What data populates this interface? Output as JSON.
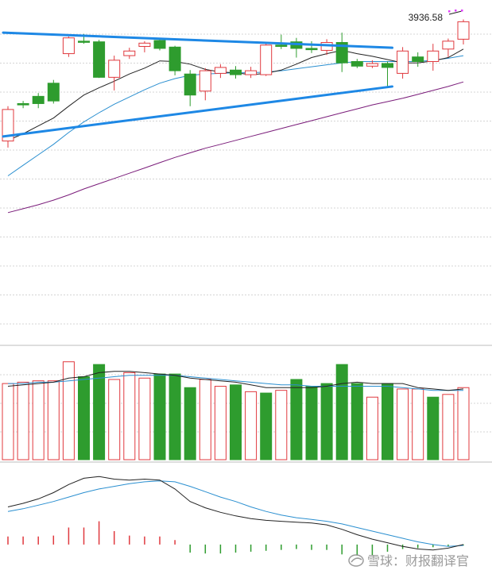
{
  "colors": {
    "up": "#e0393e",
    "down": "#2e9c2e",
    "ma_short": "#222222",
    "ma_mid": "#2a8fd0",
    "ma_long": "#7a1c7a",
    "trendline": "#1e88e5",
    "grid": "#d4d4d4",
    "separator": "#bdbdbd",
    "marker": "#e040fb"
  },
  "chart_data": [
    {
      "type": "candlestick",
      "title": "",
      "annotations": [
        "3936.58"
      ],
      "ylim": [
        3450,
        3960
      ],
      "grid": "horizontal dashed",
      "candles": [
        {
          "o": 3755,
          "c": 3803,
          "h": 3808,
          "l": 3745
        },
        {
          "o": 3812,
          "c": 3810,
          "h": 3816,
          "l": 3805
        },
        {
          "o": 3823,
          "c": 3812,
          "h": 3828,
          "l": 3805
        },
        {
          "o": 3843,
          "c": 3816,
          "h": 3848,
          "l": 3812
        },
        {
          "o": 3888,
          "c": 3912,
          "h": 3914,
          "l": 3883
        },
        {
          "o": 3907,
          "c": 3906,
          "h": 3918,
          "l": 3903
        },
        {
          "o": 3906,
          "c": 3852,
          "h": 3909,
          "l": 3851
        },
        {
          "o": 3852,
          "c": 3878,
          "h": 3885,
          "l": 3832
        },
        {
          "o": 3885,
          "c": 3892,
          "h": 3897,
          "l": 3880
        },
        {
          "o": 3899,
          "c": 3904,
          "h": 3907,
          "l": 3890
        },
        {
          "o": 3908,
          "c": 3896,
          "h": 3910,
          "l": 3893
        },
        {
          "o": 3898,
          "c": 3862,
          "h": 3900,
          "l": 3855
        },
        {
          "o": 3857,
          "c": 3825,
          "h": 3863,
          "l": 3808
        },
        {
          "o": 3831,
          "c": 3862,
          "h": 3866,
          "l": 3817
        },
        {
          "o": 3858,
          "c": 3867,
          "h": 3872,
          "l": 3851
        },
        {
          "o": 3863,
          "c": 3856,
          "h": 3869,
          "l": 3850
        },
        {
          "o": 3856,
          "c": 3862,
          "h": 3868,
          "l": 3851
        },
        {
          "o": 3856,
          "c": 3901,
          "h": 3905,
          "l": 3854
        },
        {
          "o": 3901,
          "c": 3899,
          "h": 3917,
          "l": 3895
        },
        {
          "o": 3906,
          "c": 3896,
          "h": 3912,
          "l": 3882
        },
        {
          "o": 3896,
          "c": 3894,
          "h": 3907,
          "l": 3889
        },
        {
          "o": 3893,
          "c": 3905,
          "h": 3910,
          "l": 3886
        },
        {
          "o": 3905,
          "c": 3874,
          "h": 3920,
          "l": 3860
        },
        {
          "o": 3876,
          "c": 3869,
          "h": 3880,
          "l": 3866
        },
        {
          "o": 3869,
          "c": 3873,
          "h": 3878,
          "l": 3866
        },
        {
          "o": 3873,
          "c": 3867,
          "h": 3876,
          "l": 3838
        },
        {
          "o": 3858,
          "c": 3892,
          "h": 3898,
          "l": 3850
        },
        {
          "o": 3883,
          "c": 3876,
          "h": 3890,
          "l": 3868
        },
        {
          "o": 3876,
          "c": 3892,
          "h": 3903,
          "l": 3862
        },
        {
          "o": 3895,
          "c": 3907,
          "h": 3911,
          "l": 3883
        },
        {
          "o": 3910,
          "c": 3936.58,
          "h": 3940,
          "l": 3902
        }
      ],
      "ma_short": [
        3756,
        3766,
        3778,
        3790,
        3808,
        3825,
        3836,
        3846,
        3857,
        3866,
        3877,
        3876,
        3872,
        3864,
        3860,
        3859,
        3856,
        3858,
        3863,
        3872,
        3882,
        3888,
        3893,
        3888,
        3884,
        3879,
        3874,
        3874,
        3877,
        3882,
        3895
      ],
      "ma_mid": [
        3702,
        3718,
        3734,
        3750,
        3768,
        3784,
        3798,
        3811,
        3822,
        3833,
        3843,
        3850,
        3855,
        3857,
        3858,
        3859,
        3859,
        3860,
        3862,
        3865,
        3868,
        3871,
        3874,
        3876,
        3876,
        3876,
        3876,
        3876,
        3878,
        3881,
        3885
      ],
      "ma_long": [
        3646,
        3652,
        3658,
        3665,
        3673,
        3682,
        3690,
        3698,
        3706,
        3714,
        3722,
        3730,
        3737,
        3744,
        3750,
        3756,
        3762,
        3768,
        3774,
        3780,
        3786,
        3792,
        3798,
        3804,
        3810,
        3815,
        3820,
        3826,
        3832,
        3838,
        3845
      ],
      "trendlines": [
        {
          "from": [
            0,
            3920
          ],
          "to": [
            25,
            3897
          ]
        },
        {
          "from": [
            0,
            3762
          ],
          "to": [
            25,
            3838
          ]
        }
      ]
    },
    {
      "type": "bar",
      "title": "",
      "values": [
        5.6,
        5.7,
        5.8,
        5.8,
        7.2,
        6.1,
        7.0,
        5.9,
        6.4,
        6.0,
        6.3,
        6.3,
        5.3,
        5.9,
        5.4,
        5.5,
        5.0,
        4.9,
        5.1,
        5.9,
        5.4,
        5.6,
        7.0,
        5.6,
        4.6,
        5.6,
        5.2,
        5.2,
        4.6,
        4.8,
        5.3
      ],
      "directions": [
        "up",
        "up",
        "up",
        "up",
        "up",
        "down",
        "down",
        "up",
        "up",
        "up",
        "down",
        "down",
        "down",
        "up",
        "up",
        "down",
        "up",
        "down",
        "up",
        "down",
        "down",
        "down",
        "down",
        "down",
        "up",
        "down",
        "up",
        "up",
        "down",
        "up",
        "up"
      ],
      "ma5": [
        5.4,
        5.5,
        5.6,
        5.7,
        6.0,
        6.1,
        6.4,
        6.5,
        6.5,
        6.4,
        6.3,
        6.2,
        6.0,
        5.9,
        5.8,
        5.7,
        5.5,
        5.3,
        5.3,
        5.3,
        5.3,
        5.4,
        5.6,
        5.7,
        5.6,
        5.6,
        5.6,
        5.3,
        5.2,
        5.1,
        5.2
      ],
      "ma10": [
        5.6,
        5.6,
        5.7,
        5.7,
        5.8,
        5.9,
        6.0,
        6.1,
        6.2,
        6.2,
        6.2,
        6.2,
        6.1,
        6.0,
        5.9,
        5.8,
        5.7,
        5.6,
        5.5,
        5.5,
        5.4,
        5.4,
        5.4,
        5.4,
        5.4,
        5.4,
        5.3,
        5.2,
        5.1,
        5.1,
        5.1
      ],
      "ylim": [
        0,
        8
      ]
    },
    {
      "type": "bar",
      "title": "",
      "histogram": [
        0.9,
        0.9,
        0.9,
        1.0,
        1.9,
        1.9,
        2.6,
        1.5,
        1.0,
        0.9,
        0.9,
        0.5,
        -0.9,
        -1.0,
        -1.0,
        -0.9,
        -0.8,
        -0.7,
        -0.6,
        -0.5,
        -0.6,
        -0.6,
        -1.1,
        -1.2,
        -1.2,
        -0.8,
        -0.5,
        -0.4,
        -0.3,
        -0.2,
        -0.1
      ],
      "dif": [
        4.2,
        4.6,
        5.1,
        5.8,
        6.7,
        7.4,
        7.6,
        7.3,
        7.2,
        7.3,
        7.2,
        6.2,
        4.8,
        4.1,
        3.6,
        3.2,
        2.9,
        2.7,
        2.6,
        2.5,
        2.4,
        2.2,
        1.7,
        1.1,
        0.6,
        0.2,
        -0.2,
        -0.5,
        -0.6,
        -0.4,
        0.0
      ],
      "dea": [
        3.7,
        4.0,
        4.4,
        4.8,
        5.3,
        5.8,
        6.2,
        6.5,
        6.8,
        7.0,
        7.1,
        7.0,
        6.5,
        5.9,
        5.3,
        4.8,
        4.2,
        3.7,
        3.3,
        3.0,
        2.8,
        2.6,
        2.3,
        1.9,
        1.5,
        1.1,
        0.7,
        0.3,
        0.0,
        -0.2,
        -0.1
      ],
      "ylim": [
        -3.2,
        8.5
      ]
    }
  ],
  "watermark": "雪球：财报翻译官"
}
